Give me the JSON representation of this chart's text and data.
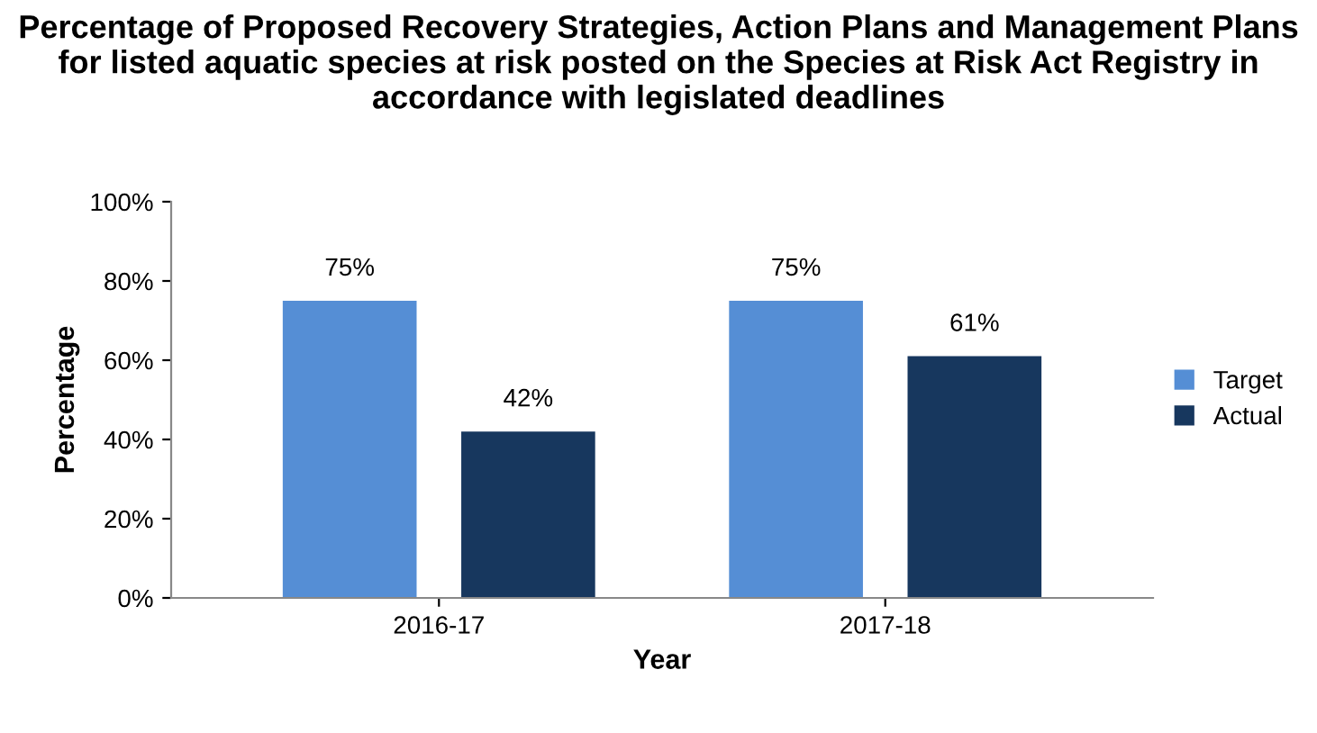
{
  "chart_data": {
    "type": "bar",
    "title": "Percentage of Proposed Recovery Strategies, Action Plans and Management Plans for listed aquatic species at risk posted on the Species at Risk Act Registry in accordance with legislated deadlines",
    "xlabel": "Year",
    "ylabel": "Percentage",
    "categories": [
      "2016-17",
      "2017-18"
    ],
    "series": [
      {
        "name": "Target",
        "color": "#558ed5",
        "values": [
          75,
          75
        ],
        "value_labels": [
          "75%",
          "75%"
        ]
      },
      {
        "name": "Actual",
        "color": "#17375e",
        "values": [
          42,
          61
        ],
        "value_labels": [
          "42%",
          "61%"
        ]
      }
    ],
    "ylim": [
      0,
      100
    ],
    "yticks": [
      {
        "value": 0,
        "label": "0%"
      },
      {
        "value": 20,
        "label": "20%"
      },
      {
        "value": 40,
        "label": "40%"
      },
      {
        "value": 60,
        "label": "60%"
      },
      {
        "value": 80,
        "label": "80%"
      },
      {
        "value": 100,
        "label": "100%"
      }
    ],
    "grid": false,
    "legend": "right"
  }
}
